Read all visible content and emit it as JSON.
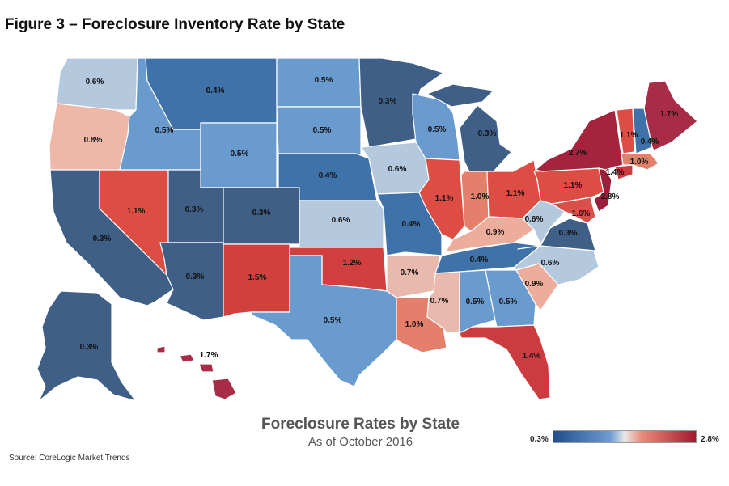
{
  "figure_title": "Figure 3 – Foreclosure Inventory Rate by State",
  "map_title": "Foreclosure Rates by State",
  "map_subtitle": "As of October 2016",
  "source": "Source: CoreLogic Market Trends",
  "legend": {
    "min_label": "0.3%",
    "max_label": "2.8%",
    "min_color": "#1f4e8c",
    "max_color": "#a3192f"
  },
  "colors": {
    "0.3": "#3f5f86",
    "0.4": "#3e72a8",
    "0.5": "#6a9bcf",
    "0.6": "#b4c9de",
    "0.7": "#eab9ae",
    "0.8": "#eeb7a8",
    "0.9": "#ecad9c",
    "1.0": "#e47f6c",
    "1.1": "#de4d43",
    "1.2": "#d23f3f",
    "1.4": "#cc3b3f",
    "1.5": "#d2403d",
    "1.6": "#d9504a",
    "1.7": "#a82c45",
    "2.7": "#a3243c",
    "2.8": "#9b1f3a"
  },
  "states": [
    {
      "name": "WA",
      "rate": "0.6%"
    },
    {
      "name": "OR",
      "rate": "0.8%"
    },
    {
      "name": "CA",
      "rate": "0.3%"
    },
    {
      "name": "NV",
      "rate": "1.1%"
    },
    {
      "name": "ID",
      "rate": "0.5%"
    },
    {
      "name": "MT",
      "rate": "0.4%"
    },
    {
      "name": "WY",
      "rate": "0.5%"
    },
    {
      "name": "UT",
      "rate": "0.3%"
    },
    {
      "name": "AZ",
      "rate": "0.3%"
    },
    {
      "name": "CO",
      "rate": "0.3%"
    },
    {
      "name": "NM",
      "rate": "1.5%"
    },
    {
      "name": "ND",
      "rate": "0.5%"
    },
    {
      "name": "SD",
      "rate": "0.5%"
    },
    {
      "name": "NE",
      "rate": "0.4%"
    },
    {
      "name": "KS",
      "rate": "0.6%"
    },
    {
      "name": "OK",
      "rate": "1.2%"
    },
    {
      "name": "TX",
      "rate": "0.5%"
    },
    {
      "name": "MN",
      "rate": "0.3%"
    },
    {
      "name": "IA",
      "rate": "0.6%"
    },
    {
      "name": "MO",
      "rate": "0.4%"
    },
    {
      "name": "AR",
      "rate": "0.7%"
    },
    {
      "name": "LA",
      "rate": "1.0%"
    },
    {
      "name": "WI",
      "rate": "0.5%"
    },
    {
      "name": "IL",
      "rate": "1.1%"
    },
    {
      "name": "MI",
      "rate": "0.3%"
    },
    {
      "name": "IN",
      "rate": "1.0%"
    },
    {
      "name": "OH",
      "rate": "1.1%"
    },
    {
      "name": "KY",
      "rate": "0.9%"
    },
    {
      "name": "TN",
      "rate": "0.4%"
    },
    {
      "name": "MS",
      "rate": "0.7%"
    },
    {
      "name": "AL",
      "rate": "0.5%"
    },
    {
      "name": "GA",
      "rate": "0.5%"
    },
    {
      "name": "FL",
      "rate": "1.4%"
    },
    {
      "name": "SC",
      "rate": "0.9%"
    },
    {
      "name": "NC",
      "rate": "0.6%"
    },
    {
      "name": "VA",
      "rate": "0.3%"
    },
    {
      "name": "WV",
      "rate": "0.6%"
    },
    {
      "name": "MD",
      "rate": "1.6%"
    },
    {
      "name": "PA",
      "rate": "1.1%"
    },
    {
      "name": "NY",
      "rate": "2.7%"
    },
    {
      "name": "NJ",
      "rate": "2.8%"
    },
    {
      "name": "CT",
      "rate": "1.4%"
    },
    {
      "name": "MA",
      "rate": "1.0%"
    },
    {
      "name": "VT",
      "rate": "1.1%"
    },
    {
      "name": "NH",
      "rate": "0.4%"
    },
    {
      "name": "ME",
      "rate": "1.7%"
    },
    {
      "name": "AK",
      "rate": "0.3%"
    },
    {
      "name": "HI",
      "rate": "1.7%"
    }
  ]
}
